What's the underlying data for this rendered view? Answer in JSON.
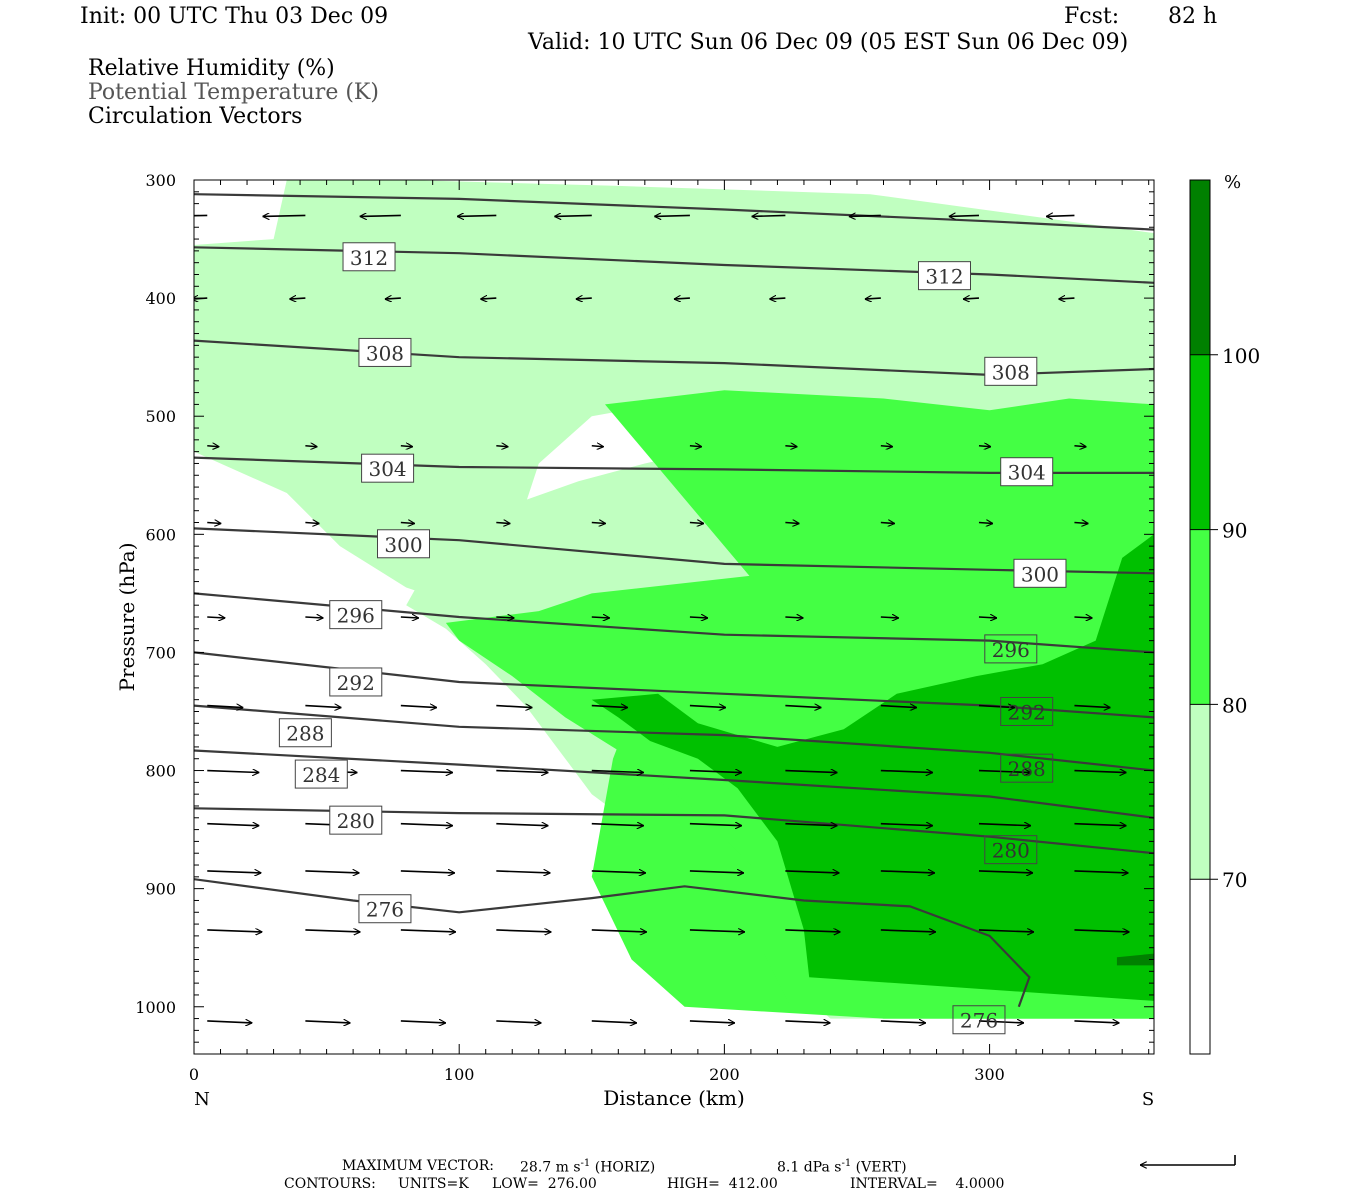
{
  "header": {
    "init": "Init: 00 UTC Thu 03 Dec 09",
    "fcst_label": "Fcst:",
    "fcst_value": "82 h",
    "valid": "Valid: 10 UTC Sun 06 Dec 09 (05 EST Sun 06 Dec 09)",
    "fields": [
      "Relative Humidity (%)",
      "Potential Temperature (K)",
      "Circulation Vectors"
    ]
  },
  "footer": {
    "max_vector_label": "MAXIMUM VECTOR:",
    "max_vector_horiz": "28.7 m s",
    "horiz_tag": "(HORIZ)",
    "max_vector_vert": "8.1 dPa s",
    "vert_tag": "(VERT)",
    "exp": "-1",
    "contours_label": "CONTOURS:",
    "units": "UNITS=K",
    "low": "LOW=  276.00",
    "high": "HIGH=  412.00",
    "interval": "INTERVAL=    4.0000"
  },
  "chart_data": {
    "type": "cross-section",
    "xlabel": "Distance (km)",
    "ylabel": "Pressure (hPa)",
    "x_end_labels": [
      "N",
      "S"
    ],
    "xlim": [
      0,
      362
    ],
    "ylim": [
      1040,
      300
    ],
    "x_ticks": [
      0,
      100,
      200,
      300
    ],
    "y_ticks": [
      300,
      400,
      500,
      600,
      700,
      800,
      900,
      1000
    ],
    "colorbar": {
      "unit": "%",
      "levels": [
        70,
        80,
        90,
        100
      ],
      "colors": [
        "#ffffff",
        "#c0ffc0",
        "#44ff44",
        "#00c000",
        "#008000"
      ]
    },
    "theta_lines": [
      {
        "value": 276,
        "x": [
          0,
          60,
          100,
          150,
          185,
          230,
          270,
          300,
          315,
          311
        ],
        "p": [
          892,
          910,
          920,
          908,
          898,
          910,
          915,
          940,
          975,
          1000
        ]
      },
      {
        "value": 280,
        "x": [
          0,
          100,
          200,
          300,
          362
        ],
        "p": [
          832,
          836,
          838,
          856,
          870
        ]
      },
      {
        "value": 284,
        "x": [
          0,
          100,
          200,
          300,
          362
        ],
        "p": [
          783,
          795,
          808,
          822,
          840
        ]
      },
      {
        "value": 288,
        "x": [
          0,
          100,
          200,
          300,
          362
        ],
        "p": [
          745,
          763,
          770,
          785,
          800
        ]
      },
      {
        "value": 292,
        "x": [
          0,
          100,
          200,
          300,
          362
        ],
        "p": [
          700,
          725,
          735,
          745,
          755
        ]
      },
      {
        "value": 296,
        "x": [
          0,
          100,
          200,
          300,
          362
        ],
        "p": [
          650,
          670,
          685,
          690,
          700
        ]
      },
      {
        "value": 300,
        "x": [
          0,
          100,
          200,
          300,
          362
        ],
        "p": [
          595,
          605,
          625,
          630,
          633
        ]
      },
      {
        "value": 304,
        "x": [
          0,
          100,
          200,
          300,
          362
        ],
        "p": [
          535,
          543,
          545,
          548,
          548
        ]
      },
      {
        "value": 308,
        "x": [
          0,
          100,
          200,
          300,
          362
        ],
        "p": [
          436,
          450,
          455,
          465,
          460
        ]
      },
      {
        "value": 312,
        "x": [
          0,
          100,
          200,
          300,
          362
        ],
        "p": [
          357,
          362,
          372,
          380,
          387
        ]
      },
      {
        "value": 316,
        "x": [
          0,
          100,
          200,
          300,
          362
        ],
        "p": [
          312,
          316,
          325,
          335,
          342
        ]
      }
    ],
    "contour_labels": [
      {
        "value": 312,
        "x": 66,
        "p": 365
      },
      {
        "value": 312,
        "x": 283,
        "p": 381
      },
      {
        "value": 308,
        "x": 72,
        "p": 446
      },
      {
        "value": 308,
        "x": 308,
        "p": 462
      },
      {
        "value": 304,
        "x": 73,
        "p": 544
      },
      {
        "value": 304,
        "x": 314,
        "p": 547
      },
      {
        "value": 300,
        "x": 79,
        "p": 608
      },
      {
        "value": 300,
        "x": 319,
        "p": 633
      },
      {
        "value": 296,
        "x": 61,
        "p": 668
      },
      {
        "value": 296,
        "x": 308,
        "p": 697
      },
      {
        "value": 292,
        "x": 61,
        "p": 725
      },
      {
        "value": 292,
        "x": 314,
        "p": 750
      },
      {
        "value": 288,
        "x": 42,
        "p": 768
      },
      {
        "value": 288,
        "x": 314,
        "p": 798
      },
      {
        "value": 284,
        "x": 48,
        "p": 803
      },
      {
        "value": 280,
        "x": 61,
        "p": 842
      },
      {
        "value": 280,
        "x": 308,
        "p": 867
      },
      {
        "value": 276,
        "x": 72,
        "p": 917
      },
      {
        "value": 276,
        "x": 296,
        "p": 1011
      }
    ],
    "rh_regions": [
      {
        "level": 70,
        "x": [
          35,
          60,
          80,
          160,
          255,
          320,
          362,
          362,
          330,
          305,
          255,
          175,
          150,
          130,
          122,
          132,
          110,
          100,
          80,
          55,
          35,
          0,
          0,
          30
        ],
        "p": [
          300,
          300,
          300,
          305,
          312,
          332,
          345,
          530,
          532,
          520,
          500,
          490,
          500,
          540,
          595,
          620,
          665,
          660,
          645,
          610,
          565,
          530,
          355,
          350
        ]
      },
      {
        "level": 70,
        "x": [
          80,
          95,
          110,
          125,
          140,
          150,
          165,
          180,
          195,
          205,
          215,
          225,
          240,
          362,
          362,
          245,
          225,
          213,
          207,
          190,
          170,
          145,
          120,
          100,
          85
        ],
        "p": [
          660,
          680,
          710,
          745,
          790,
          820,
          845,
          865,
          880,
          900,
          935,
          980,
          1010,
          1010,
          640,
          650,
          640,
          610,
          560,
          530,
          540,
          555,
          575,
          610,
          640
        ]
      },
      {
        "level": 80,
        "x": [
          155,
          200,
          260,
          300,
          330,
          362,
          362,
          260,
          185,
          165,
          150,
          158,
          170,
          190,
          215
        ],
        "p": [
          490,
          478,
          485,
          495,
          485,
          490,
          1010,
          1010,
          1000,
          960,
          890,
          790,
          720,
          690,
          650
        ]
      },
      {
        "level": 80,
        "x": [
          95,
          130,
          150,
          190,
          230,
          275,
          362,
          362,
          260,
          225,
          215,
          210,
          190,
          165,
          140,
          120,
          100
        ],
        "p": [
          675,
          665,
          650,
          640,
          630,
          640,
          640,
          1010,
          1010,
          1000,
          955,
          880,
          835,
          790,
          755,
          720,
          690
        ]
      },
      {
        "level": 90,
        "x": [
          150,
          175,
          190,
          220,
          245,
          265,
          295,
          320,
          340,
          350,
          362,
          362,
          232,
          230,
          220,
          205,
          190,
          172,
          160
        ],
        "p": [
          740,
          735,
          760,
          780,
          765,
          735,
          720,
          710,
          690,
          620,
          600,
          995,
          975,
          935,
          860,
          815,
          790,
          775,
          755
        ]
      },
      {
        "level": 100,
        "x": [
          348,
          362,
          362,
          348
        ],
        "p": [
          958,
          955,
          965,
          965
        ]
      }
    ],
    "vectors_max": {
      "horiz": 28.7,
      "vert": 8.1
    }
  }
}
